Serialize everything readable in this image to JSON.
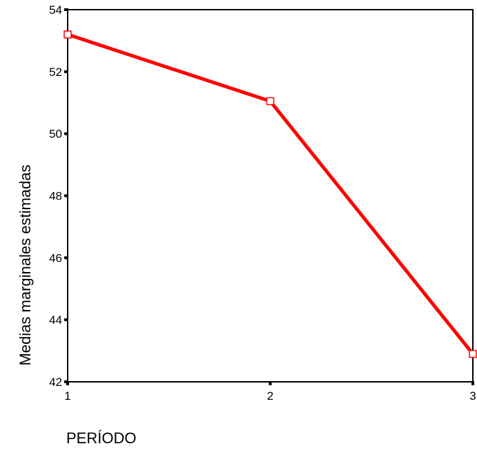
{
  "chart_data": {
    "type": "line",
    "title": "",
    "xlabel": "PERÍODO",
    "ylabel": "Medias marginales estimadas",
    "x": [
      1,
      2,
      3
    ],
    "xticks": [
      "1",
      "2",
      "3"
    ],
    "yticks": [
      "42",
      "44",
      "46",
      "48",
      "50",
      "52",
      "54"
    ],
    "ylim": [
      42,
      54
    ],
    "xlim": [
      1,
      3
    ],
    "grid": false,
    "series": [
      {
        "values": [
          53.2,
          51.05,
          42.9
        ],
        "color": "#ff0000",
        "marker": "square"
      }
    ]
  }
}
